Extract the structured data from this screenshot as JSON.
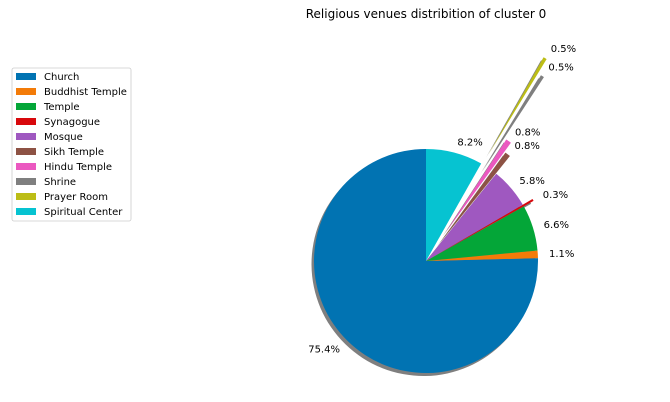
{
  "chart_data": {
    "type": "pie",
    "title": "Religious venues distribition of cluster 0",
    "start_angle_deg": 90,
    "direction": "counterclockwise",
    "shadow": true,
    "legend_position": "upper-left",
    "slices": [
      {
        "label": "Church",
        "value": 75.4,
        "pct_label": "75.4%",
        "color": "#0173b2",
        "exploded": false
      },
      {
        "label": "Buddhist Temple",
        "value": 1.1,
        "pct_label": "1.1%",
        "color": "#f37b08",
        "exploded": false
      },
      {
        "label": "Temple",
        "value": 6.6,
        "pct_label": "6.6%",
        "color": "#04a638",
        "exploded": false
      },
      {
        "label": "Synagogue",
        "value": 0.3,
        "pct_label": "0.3%",
        "color": "#d8080c",
        "exploded": true
      },
      {
        "label": "Mosque",
        "value": 5.8,
        "pct_label": "5.8%",
        "color": "#9f58c0",
        "exploded": false
      },
      {
        "label": "Sikh Temple",
        "value": 0.8,
        "pct_label": "0.8%",
        "color": "#8d5244",
        "exploded": true
      },
      {
        "label": "Hindu Temple",
        "value": 0.8,
        "pct_label": "0.8%",
        "color": "#eb58c0",
        "exploded": true
      },
      {
        "label": "Shrine",
        "value": 0.5,
        "pct_label": "0.5%",
        "color": "#7f7f7f",
        "exploded": true
      },
      {
        "label": "Prayer Room",
        "value": 0.5,
        "pct_label": "0.5%",
        "color": "#bcbd16",
        "exploded": true
      },
      {
        "label": "Spiritual Center",
        "value": 8.2,
        "pct_label": "8.2%",
        "color": "#06c3d1",
        "exploded": false
      }
    ]
  }
}
